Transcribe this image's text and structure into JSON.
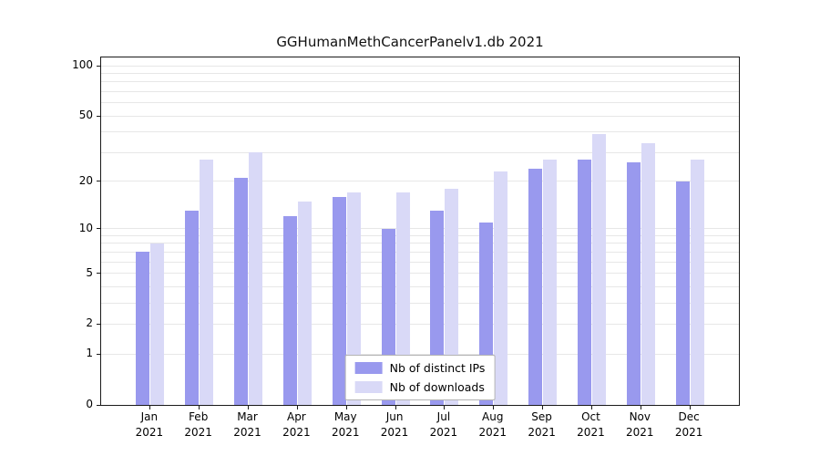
{
  "chart_data": {
    "type": "bar",
    "title": "GGHumanMethCancerPanelv1.db 2021",
    "categories": [
      "Jan",
      "Feb",
      "Mar",
      "Apr",
      "May",
      "Jun",
      "Jul",
      "Aug",
      "Sep",
      "Oct",
      "Nov",
      "Dec"
    ],
    "x_sublabel": "2021",
    "series": [
      {
        "name": "Nb of distinct IPs",
        "color": "#9999ee",
        "values": [
          7,
          13,
          21,
          12,
          16,
          10,
          13,
          11,
          24,
          27,
          26,
          20
        ]
      },
      {
        "name": "Nb of downloads",
        "color": "#d9d9f7",
        "values": [
          8,
          27,
          30,
          15,
          17,
          17,
          18,
          23,
          27,
          39,
          34,
          27
        ]
      }
    ],
    "y_axis": {
      "scale": "log1p",
      "ticks": [
        0,
        1,
        2,
        5,
        10,
        20,
        50,
        100
      ],
      "lim": [
        0,
        100
      ]
    },
    "grid": true,
    "legend_position": "bottom-center-inside"
  }
}
